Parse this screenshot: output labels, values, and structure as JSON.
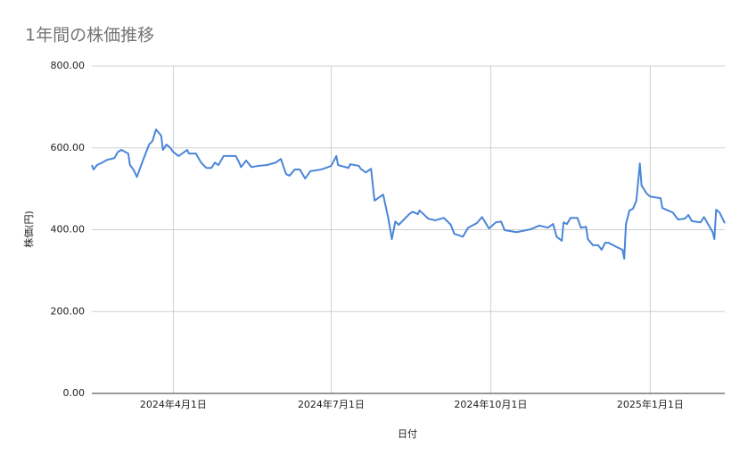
{
  "chart_data": {
    "type": "line",
    "title": "1年間の株価推移",
    "x_label": "日付",
    "y_label": "株価(円)",
    "x": [
      "2024-02-14",
      "2024-02-15",
      "2024-02-17",
      "2024-02-20",
      "2024-02-23",
      "2024-02-27",
      "2024-02-29",
      "2024-03-02",
      "2024-03-06",
      "2024-03-07",
      "2024-03-09",
      "2024-03-11",
      "2024-03-14",
      "2024-03-16",
      "2024-03-18",
      "2024-03-20",
      "2024-03-22",
      "2024-03-25",
      "2024-03-26",
      "2024-03-28",
      "2024-03-30",
      "2024-04-01",
      "2024-04-04",
      "2024-04-06",
      "2024-04-09",
      "2024-04-10",
      "2024-04-14",
      "2024-04-17",
      "2024-04-20",
      "2024-04-23",
      "2024-04-25",
      "2024-04-27",
      "2024-04-30",
      "2024-05-07",
      "2024-05-09",
      "2024-05-10",
      "2024-05-13",
      "2024-05-16",
      "2024-05-20",
      "2024-05-25",
      "2024-05-30",
      "2024-06-02",
      "2024-06-05",
      "2024-06-07",
      "2024-06-10",
      "2024-06-13",
      "2024-06-16",
      "2024-06-19",
      "2024-06-25",
      "2024-06-28",
      "2024-07-01",
      "2024-07-04",
      "2024-07-05",
      "2024-07-11",
      "2024-07-12",
      "2024-07-17",
      "2024-07-18",
      "2024-07-21",
      "2024-07-24",
      "2024-07-26",
      "2024-07-31",
      "2024-08-03",
      "2024-08-05",
      "2024-08-07",
      "2024-08-09",
      "2024-08-15",
      "2024-08-17",
      "2024-08-20",
      "2024-08-21",
      "2024-08-26",
      "2024-08-30",
      "2024-09-04",
      "2024-09-08",
      "2024-09-10",
      "2024-09-15",
      "2024-09-18",
      "2024-09-23",
      "2024-09-26",
      "2024-09-30",
      "2024-10-04",
      "2024-10-07",
      "2024-10-09",
      "2024-10-16",
      "2024-10-24",
      "2024-10-29",
      "2024-11-03",
      "2024-11-06",
      "2024-11-08",
      "2024-11-11",
      "2024-11-12",
      "2024-11-14",
      "2024-11-16",
      "2024-11-20",
      "2024-11-22",
      "2024-11-25",
      "2024-11-26",
      "2024-11-29",
      "2024-12-02",
      "2024-12-04",
      "2024-12-06",
      "2024-12-08",
      "2024-12-13",
      "2024-12-16",
      "2024-12-17",
      "2024-12-18",
      "2024-12-20",
      "2024-12-22",
      "2024-12-24",
      "2024-12-26",
      "2024-12-27",
      "2024-12-30",
      "2025-01-01",
      "2025-01-07",
      "2025-01-08",
      "2025-01-14",
      "2025-01-17",
      "2025-01-21",
      "2025-01-23",
      "2025-01-25",
      "2025-01-30",
      "2025-02-01",
      "2025-02-06",
      "2025-02-07",
      "2025-02-08",
      "2025-02-10",
      "2025-02-13"
    ],
    "series": [
      {
        "name": "株価",
        "color": "#4a86d8",
        "values": [
          558,
          547,
          558,
          564,
          571,
          575,
          590,
          595,
          586,
          558,
          547,
          529,
          564,
          586,
          608,
          617,
          645,
          630,
          595,
          608,
          601,
          590,
          580,
          586,
          595,
          586,
          586,
          564,
          551,
          551,
          564,
          558,
          580,
          580,
          564,
          553,
          569,
          553,
          556,
          558,
          564,
          573,
          536,
          532,
          547,
          547,
          525,
          543,
          547,
          551,
          556,
          580,
          558,
          551,
          560,
          556,
          549,
          540,
          549,
          471,
          486,
          427,
          377,
          420,
          412,
          438,
          444,
          438,
          447,
          427,
          423,
          429,
          412,
          390,
          383,
          405,
          416,
          431,
          403,
          418,
          420,
          399,
          394,
          401,
          410,
          405,
          414,
          383,
          373,
          418,
          414,
          429,
          429,
          405,
          407,
          377,
          362,
          362,
          351,
          368,
          368,
          357,
          351,
          329,
          414,
          447,
          451,
          471,
          562,
          508,
          488,
          481,
          477,
          453,
          442,
          425,
          427,
          436,
          421,
          418,
          431,
          394,
          377,
          449,
          442,
          416
        ]
      }
    ],
    "xlim": [
      "2024-02-14",
      "2025-02-13"
    ],
    "xticks": [
      {
        "value": "2024-04-01",
        "label": "2024年4月1日"
      },
      {
        "value": "2024-07-01",
        "label": "2024年7月1日"
      },
      {
        "value": "2024-10-01",
        "label": "2024年10月1日"
      },
      {
        "value": "2025-01-01",
        "label": "2025年1月1日"
      }
    ],
    "ylim": [
      0,
      800
    ],
    "yticks": [
      {
        "value": 0,
        "label": "0.00"
      },
      {
        "value": 200,
        "label": "200.00"
      },
      {
        "value": 400,
        "label": "400.00"
      },
      {
        "value": 600,
        "label": "600.00"
      },
      {
        "value": 800,
        "label": "800.00"
      }
    ],
    "grid": true
  }
}
